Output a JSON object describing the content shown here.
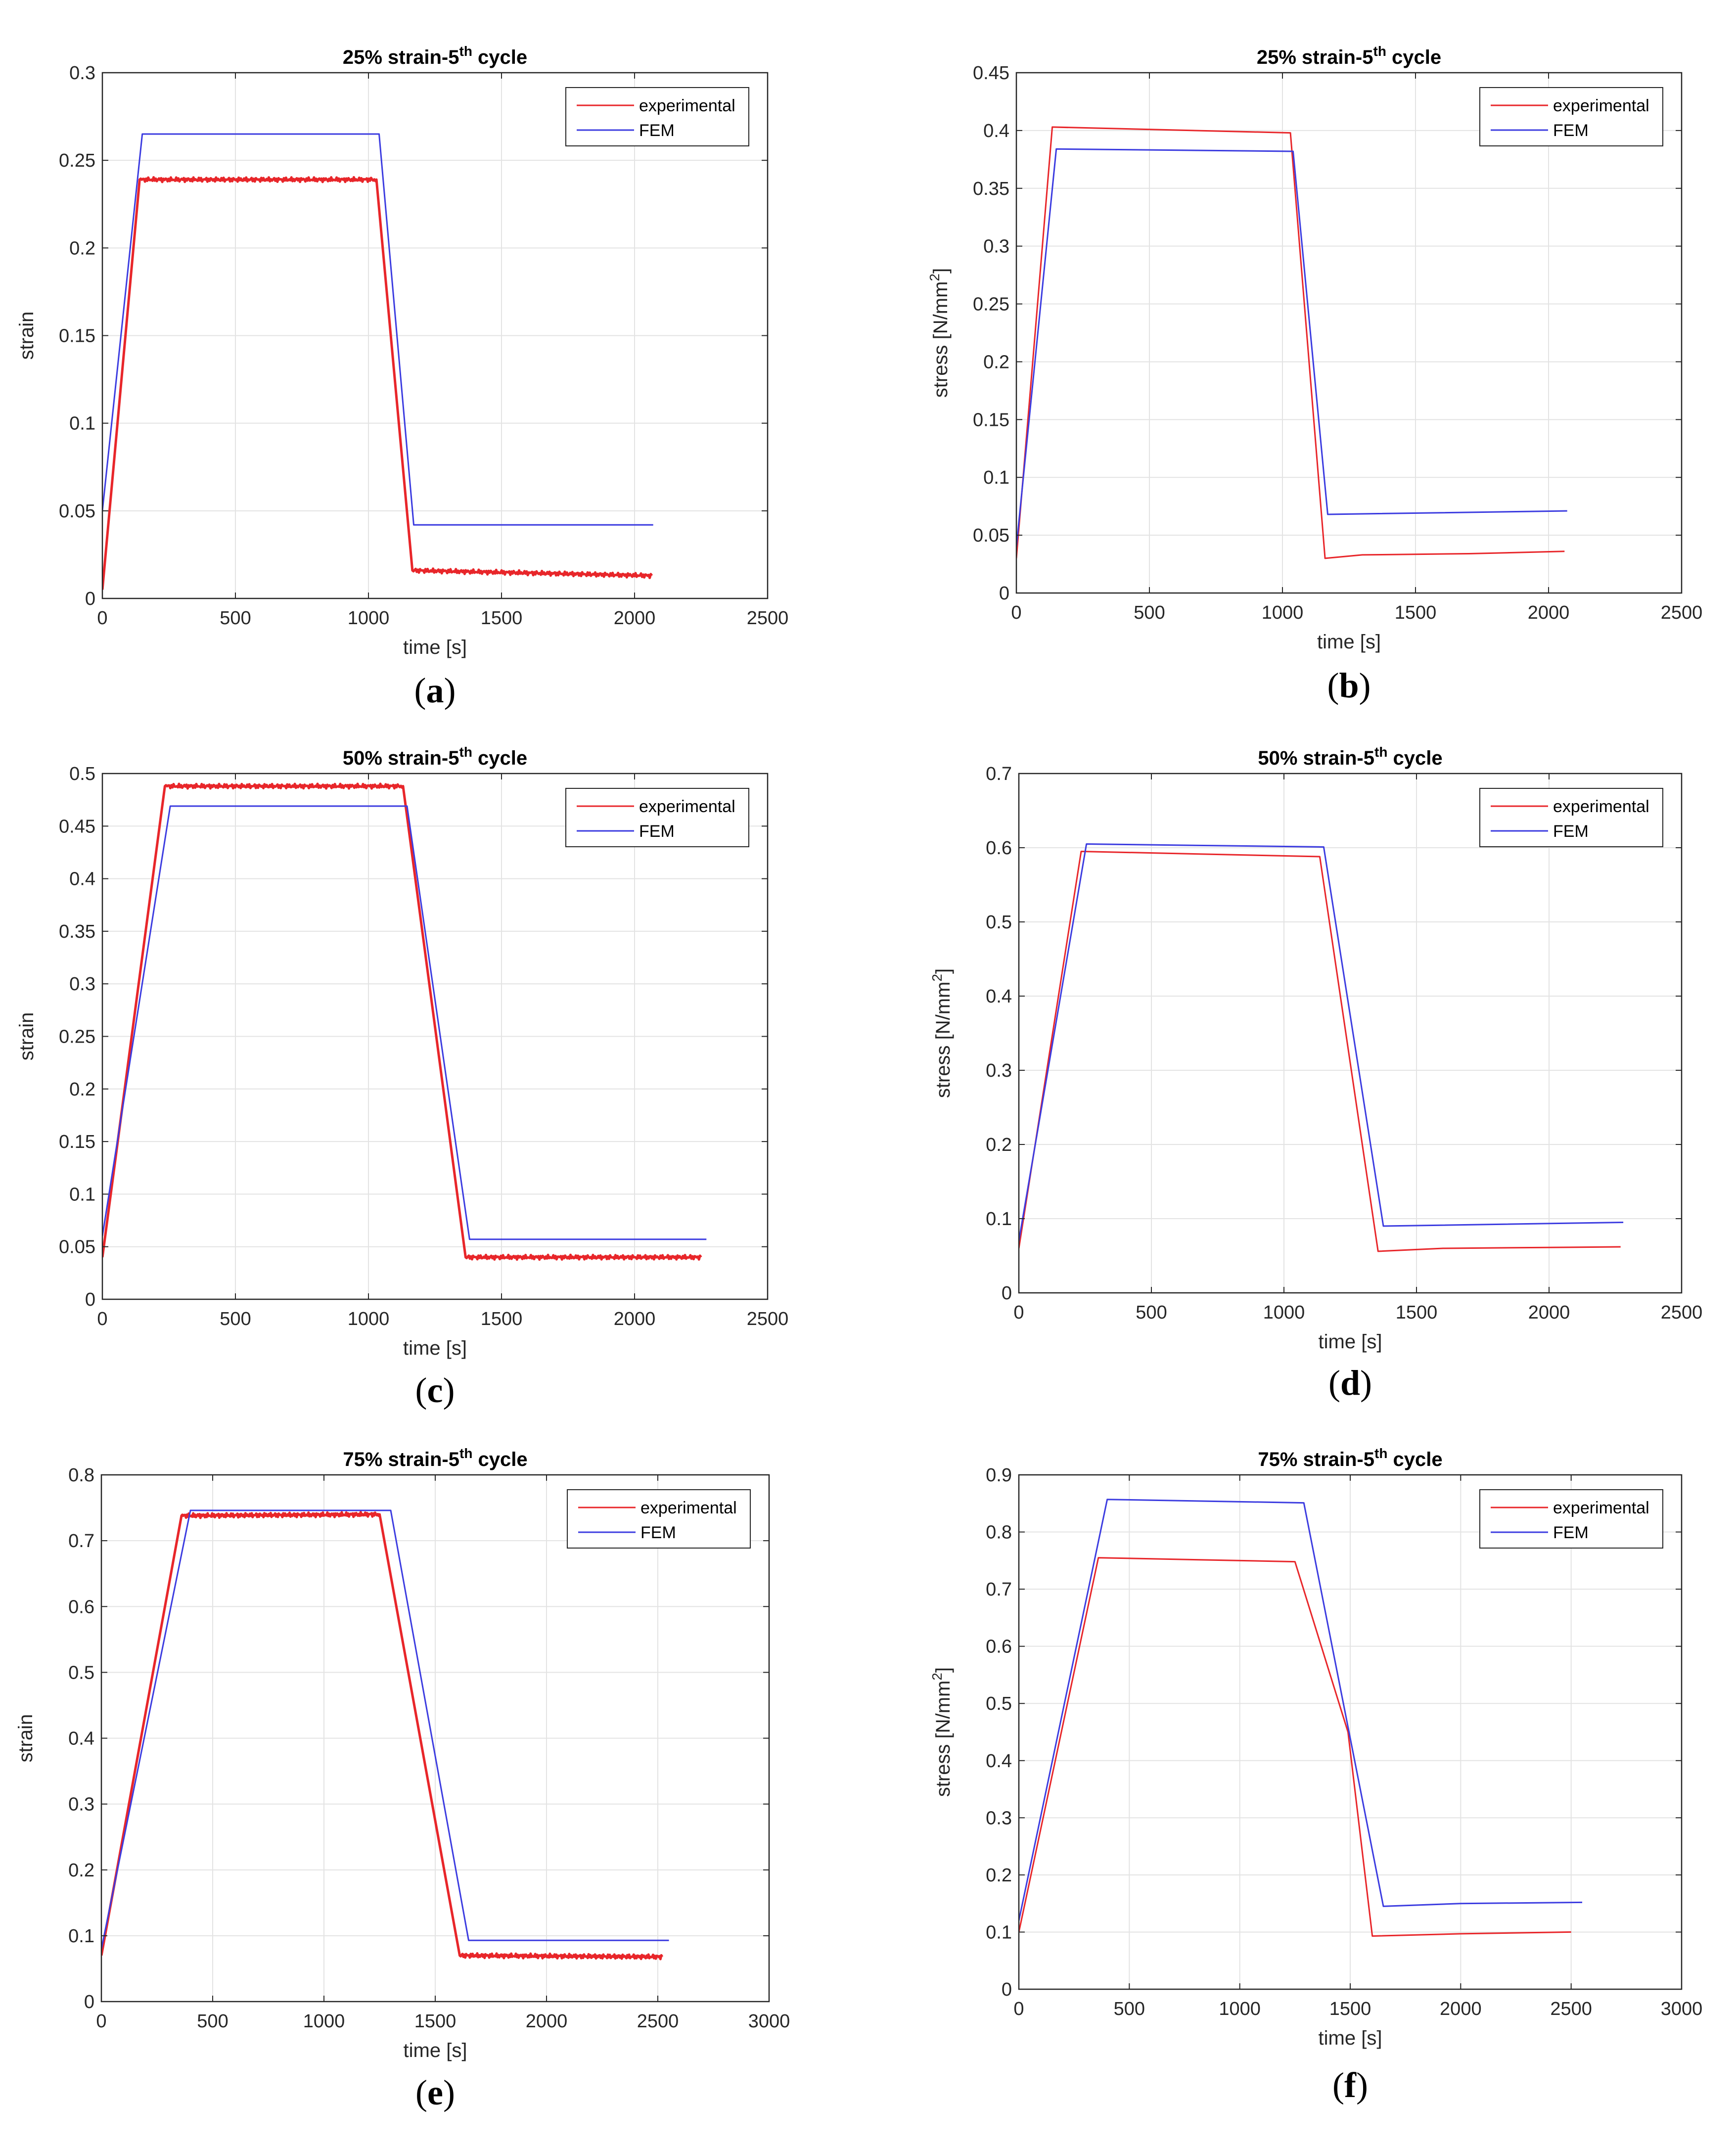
{
  "chart_data": [
    {
      "panel_label": "a",
      "type": "line",
      "title": "25% strain-5",
      "title_sup": "th",
      "title_suffix": " cycle",
      "xlabel": "time [s]",
      "ylabel": "strain",
      "ylabel_sup": "",
      "ylabel_suffix": "",
      "xlim": [
        0,
        2500
      ],
      "ylim": [
        0,
        0.3
      ],
      "xticks": [
        0,
        500,
        1000,
        1500,
        2000,
        2500
      ],
      "yticks": [
        0,
        0.05,
        0.1,
        0.15,
        0.2,
        0.25,
        0.3
      ],
      "xtick_labels": [
        "0",
        "500",
        "1000",
        "1500",
        "2000",
        "2500"
      ],
      "ytick_labels": [
        "0",
        "0.05",
        "0.1",
        "0.15",
        "0.2",
        "0.25",
        "0.3"
      ],
      "grid": true,
      "legend_position": "top-right",
      "series": [
        {
          "name": "experimental",
          "color": "#e8262a",
          "noisy": true,
          "x": [
            0,
            140,
            1030,
            1165,
            2065
          ],
          "y": [
            0.005,
            0.239,
            0.239,
            0.016,
            0.013
          ]
        },
        {
          "name": "FEM",
          "color": "#3c3ce0",
          "noisy": false,
          "x": [
            0,
            150,
            1040,
            1170,
            2070
          ],
          "y": [
            0.05,
            0.265,
            0.265,
            0.042,
            0.042
          ]
        }
      ]
    },
    {
      "panel_label": "b",
      "type": "line",
      "title": "25% strain-5",
      "title_sup": "th",
      "title_suffix": " cycle",
      "xlabel": "time [s]",
      "ylabel": "stress [N/mm",
      "ylabel_sup": "2",
      "ylabel_suffix": "]",
      "xlim": [
        0,
        2500
      ],
      "ylim": [
        0,
        0.45
      ],
      "xticks": [
        0,
        500,
        1000,
        1500,
        2000,
        2500
      ],
      "yticks": [
        0,
        0.05,
        0.1,
        0.15,
        0.2,
        0.25,
        0.3,
        0.35,
        0.4,
        0.45
      ],
      "xtick_labels": [
        "0",
        "500",
        "1000",
        "1500",
        "2000",
        "2500"
      ],
      "ytick_labels": [
        "0",
        "0.05",
        "0.1",
        "0.15",
        "0.2",
        "0.25",
        "0.3",
        "0.35",
        "0.4",
        "0.45"
      ],
      "grid": true,
      "legend_position": "top-right",
      "series": [
        {
          "name": "experimental",
          "color": "#e8262a",
          "noisy": false,
          "x": [
            0,
            135,
            1030,
            1160,
            1300,
            1700,
            2060
          ],
          "y": [
            0.03,
            0.403,
            0.398,
            0.03,
            0.033,
            0.034,
            0.036
          ]
        },
        {
          "name": "FEM",
          "color": "#3c3ce0",
          "noisy": false,
          "x": [
            0,
            150,
            1040,
            1170,
            2070
          ],
          "y": [
            0.04,
            0.384,
            0.382,
            0.068,
            0.071
          ]
        }
      ]
    },
    {
      "panel_label": "c",
      "type": "line",
      "title": "50% strain-5",
      "title_sup": "th",
      "title_suffix": " cycle",
      "xlabel": "time [s]",
      "ylabel": "strain",
      "ylabel_sup": "",
      "ylabel_suffix": "",
      "xlim": [
        0,
        2500
      ],
      "ylim": [
        0,
        0.5
      ],
      "xticks": [
        0,
        500,
        1000,
        1500,
        2000,
        2500
      ],
      "yticks": [
        0,
        0.05,
        0.1,
        0.15,
        0.2,
        0.25,
        0.3,
        0.35,
        0.4,
        0.45,
        0.5
      ],
      "xtick_labels": [
        "0",
        "500",
        "1000",
        "1500",
        "2000",
        "2500"
      ],
      "ytick_labels": [
        "0",
        "0.05",
        "0.1",
        "0.15",
        "0.2",
        "0.25",
        "0.3",
        "0.35",
        "0.4",
        "0.45",
        "0.5"
      ],
      "grid": true,
      "legend_position": "top-right",
      "series": [
        {
          "name": "experimental",
          "color": "#e8262a",
          "noisy": true,
          "x": [
            0,
            235,
            1130,
            1365,
            2250
          ],
          "y": [
            0.04,
            0.488,
            0.488,
            0.04,
            0.04
          ]
        },
        {
          "name": "FEM",
          "color": "#3c3ce0",
          "noisy": false,
          "x": [
            0,
            255,
            1145,
            1380,
            2270
          ],
          "y": [
            0.06,
            0.469,
            0.469,
            0.057,
            0.057
          ]
        }
      ]
    },
    {
      "panel_label": "d",
      "type": "line",
      "title": "50% strain-5",
      "title_sup": "th",
      "title_suffix": " cycle",
      "xlabel": "time [s]",
      "ylabel": "stress [N/mm",
      "ylabel_sup": "2",
      "ylabel_suffix": "]",
      "xlim": [
        0,
        2500
      ],
      "ylim": [
        0,
        0.7
      ],
      "xticks": [
        0,
        500,
        1000,
        1500,
        2000,
        2500
      ],
      "yticks": [
        0,
        0.1,
        0.2,
        0.3,
        0.4,
        0.5,
        0.6,
        0.7
      ],
      "xtick_labels": [
        "0",
        "500",
        "1000",
        "1500",
        "2000",
        "2500"
      ],
      "ytick_labels": [
        "0",
        "0.1",
        "0.2",
        "0.3",
        "0.4",
        "0.5",
        "0.6",
        "0.7"
      ],
      "grid": true,
      "legend_position": "top-right",
      "series": [
        {
          "name": "experimental",
          "color": "#e8262a",
          "noisy": false,
          "x": [
            0,
            235,
            1135,
            1355,
            1600,
            2270
          ],
          "y": [
            0.06,
            0.595,
            0.588,
            0.056,
            0.06,
            0.062
          ]
        },
        {
          "name": "FEM",
          "color": "#3c3ce0",
          "noisy": false,
          "x": [
            0,
            255,
            1150,
            1375,
            2280
          ],
          "y": [
            0.07,
            0.605,
            0.601,
            0.09,
            0.095
          ]
        }
      ]
    },
    {
      "panel_label": "e",
      "type": "line",
      "title": "75% strain-5",
      "title_sup": "th",
      "title_suffix": " cycle",
      "xlabel": "time [s]",
      "ylabel": "strain",
      "ylabel_sup": "",
      "ylabel_suffix": "",
      "xlim": [
        0,
        3000
      ],
      "ylim": [
        0,
        0.8
      ],
      "xticks": [
        0,
        500,
        1000,
        1500,
        2000,
        2500,
        3000
      ],
      "yticks": [
        0,
        0.1,
        0.2,
        0.3,
        0.4,
        0.5,
        0.6,
        0.7,
        0.8
      ],
      "xtick_labels": [
        "0",
        "500",
        "1000",
        "1500",
        "2000",
        "2500",
        "3000"
      ],
      "ytick_labels": [
        "0",
        "0.1",
        "0.2",
        "0.3",
        "0.4",
        "0.5",
        "0.6",
        "0.7",
        "0.8"
      ],
      "grid": true,
      "legend_position": "top-right",
      "series": [
        {
          "name": "experimental",
          "color": "#e8262a",
          "noisy": true,
          "x": [
            0,
            360,
            1250,
            1610,
            2520
          ],
          "y": [
            0.07,
            0.738,
            0.74,
            0.07,
            0.068
          ]
        },
        {
          "name": "FEM",
          "color": "#3c3ce0",
          "noisy": false,
          "x": [
            0,
            400,
            1300,
            1650,
            2550
          ],
          "y": [
            0.08,
            0.746,
            0.746,
            0.093,
            0.093
          ]
        }
      ]
    },
    {
      "panel_label": "f",
      "type": "line",
      "title": "75% strain-5",
      "title_sup": "th",
      "title_suffix": " cycle",
      "xlabel": "time [s]",
      "ylabel": "stress [N/mm",
      "ylabel_sup": "2",
      "ylabel_suffix": "]",
      "xlim": [
        0,
        3000
      ],
      "ylim": [
        0,
        0.9
      ],
      "xticks": [
        0,
        500,
        1000,
        1500,
        2000,
        2500,
        3000
      ],
      "yticks": [
        0,
        0.1,
        0.2,
        0.3,
        0.4,
        0.5,
        0.6,
        0.7,
        0.8,
        0.9
      ],
      "xtick_labels": [
        "0",
        "500",
        "1000",
        "1500",
        "2000",
        "2500",
        "3000"
      ],
      "ytick_labels": [
        "0",
        "0.1",
        "0.2",
        "0.3",
        "0.4",
        "0.5",
        "0.6",
        "0.7",
        "0.8",
        "0.9"
      ],
      "grid": true,
      "legend_position": "top-right",
      "series": [
        {
          "name": "experimental",
          "color": "#e8262a",
          "noisy": false,
          "x": [
            0,
            360,
            1250,
            1490,
            1600,
            2000,
            2500
          ],
          "y": [
            0.1,
            0.755,
            0.748,
            0.45,
            0.093,
            0.097,
            0.1
          ]
        },
        {
          "name": "FEM",
          "color": "#3c3ce0",
          "noisy": false,
          "x": [
            0,
            400,
            1290,
            1650,
            2000,
            2550
          ],
          "y": [
            0.12,
            0.857,
            0.851,
            0.145,
            0.15,
            0.152
          ]
        }
      ]
    }
  ]
}
